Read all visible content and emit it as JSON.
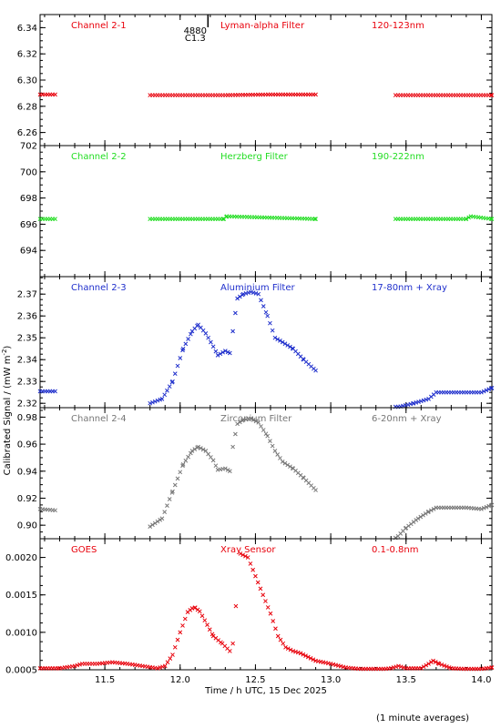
{
  "y_axis_label": "Calibrated Signal / (mW m",
  "y_axis_label_sup": "-2",
  "y_axis_label_end": ")",
  "x_axis_label": "Time / h UTC, 15 Dec 2025",
  "footer_note": "(1 minute averages)",
  "event_marker": {
    "time": 12.1,
    "label_top": "4880",
    "label_bottom": "C1.3"
  },
  "chart_data": {
    "type": "scatter",
    "x_range": [
      11.07,
      14.07
    ],
    "x_ticks": [
      "11.5",
      "12.0",
      "12.5",
      "13.0",
      "13.5",
      "14.0"
    ],
    "x_tick_values": [
      11.5,
      12.0,
      12.5,
      13.0,
      13.5,
      14.0
    ],
    "panels": [
      {
        "channel": "Channel 2-1",
        "filter": "Lyman-alpha Filter",
        "band": "120-123nm",
        "color": "#e8000b",
        "ylim": [
          6.25,
          6.35
        ],
        "y_ticks": [
          "6.26",
          "6.28",
          "6.30",
          "6.32",
          "6.34"
        ],
        "y_tick_values": [
          6.26,
          6.28,
          6.3,
          6.32,
          6.34
        ],
        "segments": [
          {
            "x": [
              11.07,
              11.17
            ],
            "y": [
              6.289,
              6.289
            ]
          },
          {
            "x": [
              11.8,
              12.3,
              12.6,
              12.9
            ],
            "y": [
              6.2885,
              6.2885,
              6.289,
              6.289
            ]
          },
          {
            "x": [
              13.43,
              14.07
            ],
            "y": [
              6.2885,
              6.2885
            ]
          }
        ]
      },
      {
        "channel": "Channel 2-2",
        "filter": "Herzberg Filter",
        "band": "190-222nm",
        "color": "#22dd22",
        "ylim": [
          692,
          702
        ],
        "y_ticks": [
          "694",
          "696",
          "698",
          "700",
          "702"
        ],
        "y_tick_values": [
          694,
          696,
          698,
          700,
          702
        ],
        "segments": [
          {
            "x": [
              11.07,
              11.17
            ],
            "y": [
              696.4,
              696.4
            ]
          },
          {
            "x": [
              11.8,
              12.29,
              12.31,
              12.9
            ],
            "y": [
              696.4,
              696.4,
              696.6,
              696.4
            ]
          },
          {
            "x": [
              13.43,
              13.9,
              13.93,
              14.07
            ],
            "y": [
              696.4,
              696.4,
              696.6,
              696.4
            ]
          }
        ]
      },
      {
        "channel": "Channel 2-3",
        "filter": "Aluminium Filter",
        "band": "17-80nm + Xray",
        "color": "#1f2fcc",
        "ylim": [
          2.318,
          2.378
        ],
        "y_ticks": [
          "2.32",
          "2.33",
          "2.34",
          "2.35",
          "2.36",
          "2.37"
        ],
        "y_tick_values": [
          2.32,
          2.33,
          2.34,
          2.35,
          2.36,
          2.37
        ],
        "segments": [
          {
            "x": [
              11.07,
              11.17
            ],
            "y": [
              2.3255,
              2.3255
            ]
          },
          {
            "x": [
              11.8,
              11.88,
              11.95,
              12.02,
              12.08,
              12.12,
              12.17,
              12.22,
              12.25,
              12.3,
              12.33
            ],
            "y": [
              2.32,
              2.322,
              2.33,
              2.345,
              2.353,
              2.356,
              2.352,
              2.346,
              2.342,
              2.344,
              2.343
            ]
          },
          {
            "x": [
              12.35,
              12.38,
              12.42,
              12.47,
              12.52,
              12.58,
              12.63,
              12.68,
              12.75,
              12.82,
              12.9
            ],
            "y": [
              2.353,
              2.368,
              2.37,
              2.371,
              2.37,
              2.36,
              2.35,
              2.348,
              2.345,
              2.34,
              2.335
            ]
          },
          {
            "x": [
              13.43,
              13.55,
              13.65,
              13.7,
              13.8,
              13.9,
              14.0,
              14.07
            ],
            "y": [
              2.318,
              2.32,
              2.322,
              2.325,
              2.325,
              2.325,
              2.325,
              2.327
            ]
          }
        ]
      },
      {
        "channel": "Channel 2-4",
        "filter": "Zirconium Filter",
        "band": "6-20nm + Xray",
        "color": "#777777",
        "ylim": [
          0.89,
          0.987
        ],
        "y_ticks": [
          "0.90",
          "0.92",
          "0.94",
          "0.96",
          "0.98"
        ],
        "y_tick_values": [
          0.9,
          0.92,
          0.94,
          0.96,
          0.98
        ],
        "segments": [
          {
            "x": [
              11.07,
              11.17
            ],
            "y": [
              0.912,
              0.911
            ]
          },
          {
            "x": [
              11.8,
              11.88,
              11.95,
              12.02,
              12.08,
              12.12,
              12.17,
              12.22,
              12.25,
              12.3,
              12.33
            ],
            "y": [
              0.899,
              0.905,
              0.925,
              0.945,
              0.955,
              0.958,
              0.955,
              0.948,
              0.941,
              0.942,
              0.94
            ]
          },
          {
            "x": [
              12.35,
              12.38,
              12.42,
              12.47,
              12.52,
              12.58,
              12.63,
              12.68,
              12.75,
              12.82,
              12.9
            ],
            "y": [
              0.958,
              0.975,
              0.978,
              0.979,
              0.976,
              0.966,
              0.955,
              0.947,
              0.942,
              0.935,
              0.926
            ]
          },
          {
            "x": [
              13.43,
              13.5,
              13.58,
              13.65,
              13.7,
              13.8,
              13.9,
              14.0,
              14.07
            ],
            "y": [
              0.89,
              0.898,
              0.905,
              0.91,
              0.913,
              0.913,
              0.913,
              0.912,
              0.915
            ]
          }
        ]
      },
      {
        "channel": "GOES",
        "filter": "Xray Sensor",
        "band": "0.1-0.8nm",
        "color": "#e8000b",
        "ylim": [
          0.0005,
          0.00225
        ],
        "y_ticks": [
          "0.0005",
          "0.0010",
          "0.0015",
          "0.0020"
        ],
        "y_tick_values": [
          0.0005,
          0.001,
          0.0015,
          0.002
        ],
        "segments": [
          {
            "x": [
              11.07,
              11.2,
              11.3,
              11.35,
              11.45,
              11.55,
              11.65,
              11.75,
              11.85,
              11.9,
              11.95,
              12.0,
              12.05,
              12.08,
              12.1,
              12.13,
              12.18,
              12.22,
              12.28,
              12.33
            ],
            "y": [
              0.00052,
              0.00052,
              0.00055,
              0.00058,
              0.00058,
              0.0006,
              0.00058,
              0.00055,
              0.00052,
              0.00055,
              0.0007,
              0.001,
              0.00127,
              0.00132,
              0.00133,
              0.00128,
              0.0011,
              0.00095,
              0.00085,
              0.00075
            ]
          },
          {
            "x": [
              12.35
            ],
            "y": [
              0.00085
            ]
          },
          {
            "x": [
              12.37
            ],
            "y": [
              0.00135
            ]
          },
          {
            "x": [
              12.4,
              12.45,
              12.5,
              12.55,
              12.6,
              12.65,
              12.7,
              12.75,
              12.8,
              12.9,
              13.0,
              13.1,
              13.2,
              13.3,
              13.4,
              13.45,
              13.5,
              13.6,
              13.65,
              13.68,
              13.72,
              13.8,
              13.9,
              14.0,
              14.07
            ],
            "y": [
              0.00205,
              0.002,
              0.00175,
              0.0015,
              0.00125,
              0.00095,
              0.0008,
              0.00075,
              0.00072,
              0.00062,
              0.00058,
              0.00053,
              0.00051,
              0.0005,
              0.00052,
              0.00055,
              0.00052,
              0.00052,
              0.00058,
              0.00062,
              0.00058,
              0.00052,
              0.00051,
              0.00051,
              0.00053
            ]
          }
        ]
      }
    ]
  }
}
